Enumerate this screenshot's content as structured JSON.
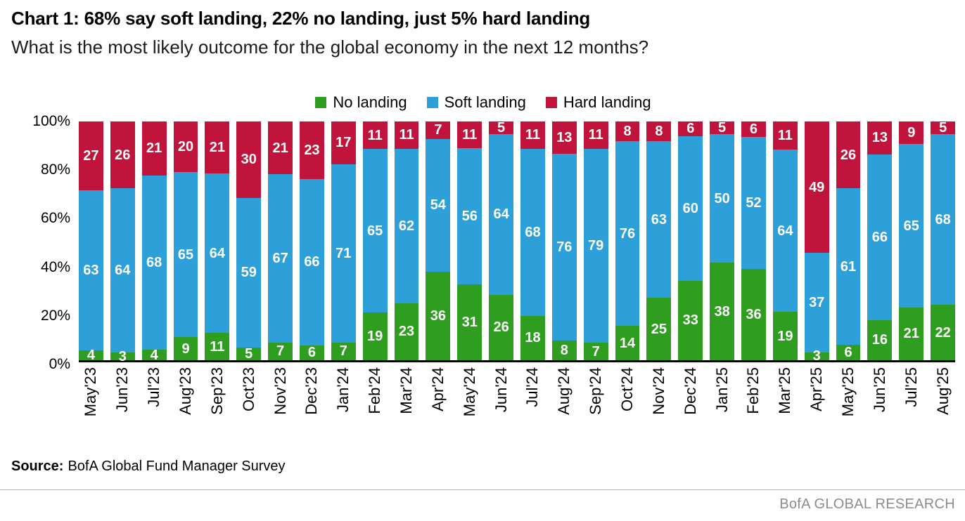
{
  "header": {
    "title": "Chart 1: 68% say soft landing, 22% no landing, just 5% hard landing",
    "subtitle": "What is the most likely outcome for the global economy in the next 12 months?"
  },
  "chart_data": {
    "type": "bar",
    "stacked": true,
    "normalized_to_full_height": true,
    "title": "Chart 1: 68% say soft landing, 22% no landing, just 5% hard landing",
    "subtitle": "What is the most likely outcome for the global economy in the next 12 months?",
    "categories": [
      "May'23",
      "Jun'23",
      "Jul'23",
      "Aug'23",
      "Sep'23",
      "Oct'23",
      "Nov'23",
      "Dec'23",
      "Jan'24",
      "Feb'24",
      "Mar'24",
      "Apr'24",
      "May'24",
      "Jun'24",
      "Jul'24",
      "Aug'24",
      "Sep'24",
      "Oct'24",
      "Nov'24",
      "Dec'24",
      "Jan'25",
      "Feb'25",
      "Mar'25",
      "Apr'25",
      "May'25",
      "Jun'25",
      "Jul'25",
      "Aug'25"
    ],
    "series": [
      {
        "name": "No landing",
        "color": "#2f9e20",
        "values": [
          4,
          3,
          4,
          9,
          11,
          5,
          7,
          6,
          7,
          19,
          23,
          36,
          31,
          26,
          18,
          8,
          7,
          14,
          25,
          33,
          38,
          36,
          19,
          3,
          6,
          16,
          21,
          22
        ]
      },
      {
        "name": "Soft landing",
        "color": "#2d9fd9",
        "values": [
          63,
          64,
          68,
          65,
          64,
          59,
          67,
          66,
          71,
          65,
          62,
          54,
          56,
          64,
          68,
          76,
          79,
          76,
          63,
          60,
          50,
          52,
          64,
          37,
          61,
          66,
          65,
          68
        ]
      },
      {
        "name": "Hard landing",
        "color": "#c0143c",
        "values": [
          27,
          26,
          21,
          20,
          21,
          30,
          21,
          23,
          17,
          11,
          11,
          7,
          11,
          5,
          11,
          13,
          11,
          8,
          8,
          6,
          5,
          6,
          11,
          49,
          26,
          13,
          9,
          5
        ]
      }
    ],
    "xlabel": "",
    "ylabel": "",
    "ylim": [
      0,
      100
    ],
    "yticks": [
      "0%",
      "20%",
      "40%",
      "60%",
      "80%",
      "100%"
    ],
    "grid": false,
    "legend_position": "top-center",
    "bar_label_color": "#ffffff",
    "axis_line_color": "#000000"
  },
  "footer": {
    "source_label": "Source:",
    "source_text": "BofA Global Fund Manager Survey",
    "branding": "BofA GLOBAL RESEARCH"
  }
}
